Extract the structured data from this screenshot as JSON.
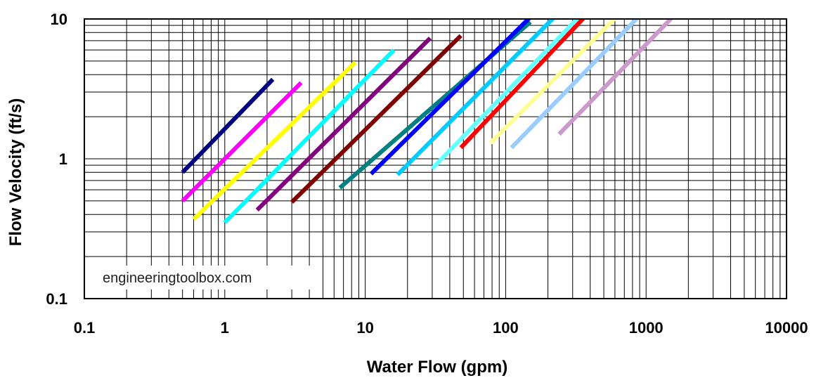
{
  "chart_data": {
    "type": "line",
    "xlabel": "Water Flow (gpm)",
    "ylabel": "Flow Velocity (ft/s)",
    "x_scale": "log",
    "y_scale": "log",
    "xlim": [
      0.1,
      10000
    ],
    "ylim": [
      0.1,
      10
    ],
    "x_ticks": [
      "0.1",
      "1",
      "10",
      "100",
      "1000",
      "10000"
    ],
    "y_ticks": [
      "0.1",
      "1",
      "10"
    ],
    "grid": true,
    "legend": "none",
    "annotation": "engineeringtoolbox.com",
    "series": [
      {
        "color": "#000080",
        "x": [
          0.5,
          2.2
        ],
        "y": [
          0.8,
          3.7
        ]
      },
      {
        "color": "#ff00ff",
        "x": [
          0.5,
          3.5
        ],
        "y": [
          0.5,
          3.5
        ]
      },
      {
        "color": "#ffff00",
        "x": [
          0.6,
          8.5
        ],
        "y": [
          0.37,
          4.9
        ]
      },
      {
        "color": "#00ffff",
        "x": [
          1.0,
          16.0
        ],
        "y": [
          0.35,
          6.0
        ]
      },
      {
        "color": "#800080",
        "x": [
          1.7,
          29.0
        ],
        "y": [
          0.43,
          7.3
        ]
      },
      {
        "color": "#800000",
        "x": [
          3.0,
          48.0
        ],
        "y": [
          0.49,
          7.6
        ]
      },
      {
        "color": "#008080",
        "x": [
          6.6,
          150.0
        ],
        "y": [
          0.62,
          9.5
        ]
      },
      {
        "color": "#0000ff",
        "x": [
          11.0,
          160.0
        ],
        "y": [
          0.78,
          11.0
        ]
      },
      {
        "color": "#00ccff",
        "x": [
          17.0,
          290.0
        ],
        "y": [
          0.77,
          13.5
        ]
      },
      {
        "color": "#66ffff",
        "x": [
          30.0,
          400.0
        ],
        "y": [
          0.85,
          12.5
        ]
      },
      {
        "color": "#ff0000",
        "x": [
          48.0,
          470.0
        ],
        "y": [
          1.2,
          13.5
        ]
      },
      {
        "color": "#ffff99",
        "x": [
          78.0,
          800.0
        ],
        "y": [
          1.3,
          13.5
        ]
      },
      {
        "color": "#99ccff",
        "x": [
          110.0,
          1100.0
        ],
        "y": [
          1.2,
          13.0
        ]
      },
      {
        "color": "#cc99cc",
        "x": [
          240.0,
          2000.0
        ],
        "y": [
          1.5,
          13.5
        ]
      }
    ]
  }
}
